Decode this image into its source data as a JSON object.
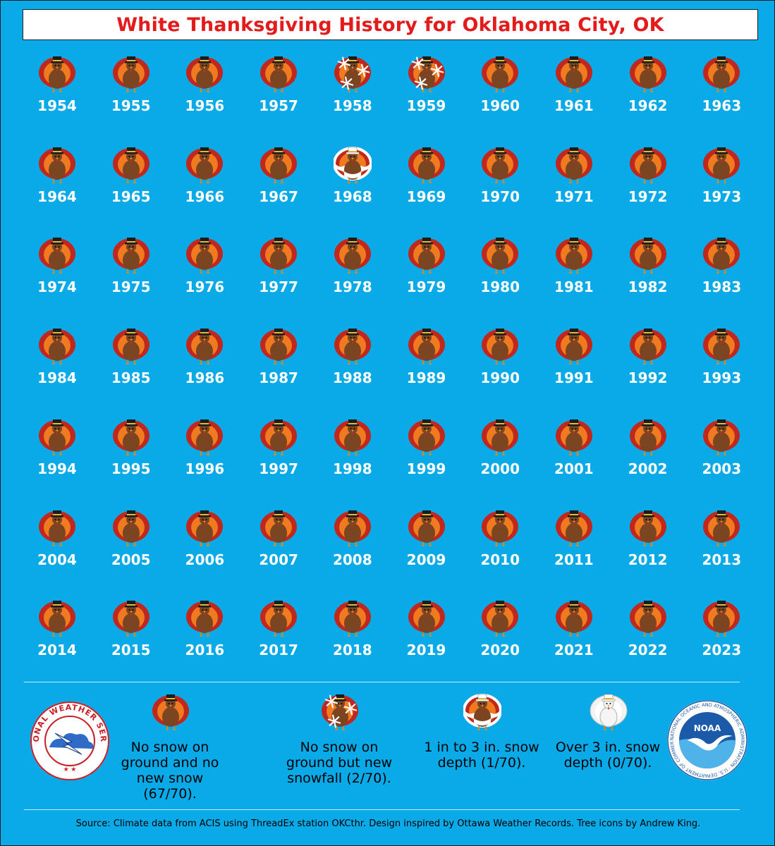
{
  "title": "White Thanksgiving History for Oklahoma City, OK",
  "chart_data": {
    "type": "table",
    "title": "White Thanksgiving History for Oklahoma City, OK",
    "categories": {
      "none": "No snow on ground and no new snow (67/70).",
      "new_snow": "No snow on ground but new snowfall (2/70).",
      "depth_1_3": "1 in to 3 in. snow depth (1/70).",
      "depth_over_3": "Over 3 in. snow depth (0/70)."
    },
    "years": [
      {
        "year": "1954",
        "category": "none"
      },
      {
        "year": "1955",
        "category": "none"
      },
      {
        "year": "1956",
        "category": "none"
      },
      {
        "year": "1957",
        "category": "none"
      },
      {
        "year": "1958",
        "category": "new_snow"
      },
      {
        "year": "1959",
        "category": "new_snow"
      },
      {
        "year": "1960",
        "category": "none"
      },
      {
        "year": "1961",
        "category": "none"
      },
      {
        "year": "1962",
        "category": "none"
      },
      {
        "year": "1963",
        "category": "none"
      },
      {
        "year": "1964",
        "category": "none"
      },
      {
        "year": "1965",
        "category": "none"
      },
      {
        "year": "1966",
        "category": "none"
      },
      {
        "year": "1967",
        "category": "none"
      },
      {
        "year": "1968",
        "category": "depth_1_3"
      },
      {
        "year": "1969",
        "category": "none"
      },
      {
        "year": "1970",
        "category": "none"
      },
      {
        "year": "1971",
        "category": "none"
      },
      {
        "year": "1972",
        "category": "none"
      },
      {
        "year": "1973",
        "category": "none"
      },
      {
        "year": "1974",
        "category": "none"
      },
      {
        "year": "1975",
        "category": "none"
      },
      {
        "year": "1976",
        "category": "none"
      },
      {
        "year": "1977",
        "category": "none"
      },
      {
        "year": "1978",
        "category": "none"
      },
      {
        "year": "1979",
        "category": "none"
      },
      {
        "year": "1980",
        "category": "none"
      },
      {
        "year": "1981",
        "category": "none"
      },
      {
        "year": "1982",
        "category": "none"
      },
      {
        "year": "1983",
        "category": "none"
      },
      {
        "year": "1984",
        "category": "none"
      },
      {
        "year": "1985",
        "category": "none"
      },
      {
        "year": "1986",
        "category": "none"
      },
      {
        "year": "1987",
        "category": "none"
      },
      {
        "year": "1988",
        "category": "none"
      },
      {
        "year": "1989",
        "category": "none"
      },
      {
        "year": "1990",
        "category": "none"
      },
      {
        "year": "1991",
        "category": "none"
      },
      {
        "year": "1992",
        "category": "none"
      },
      {
        "year": "1993",
        "category": "none"
      },
      {
        "year": "1994",
        "category": "none"
      },
      {
        "year": "1995",
        "category": "none"
      },
      {
        "year": "1996",
        "category": "none"
      },
      {
        "year": "1997",
        "category": "none"
      },
      {
        "year": "1998",
        "category": "none"
      },
      {
        "year": "1999",
        "category": "none"
      },
      {
        "year": "2000",
        "category": "none"
      },
      {
        "year": "2001",
        "category": "none"
      },
      {
        "year": "2002",
        "category": "none"
      },
      {
        "year": "2003",
        "category": "none"
      },
      {
        "year": "2004",
        "category": "none"
      },
      {
        "year": "2005",
        "category": "none"
      },
      {
        "year": "2006",
        "category": "none"
      },
      {
        "year": "2007",
        "category": "none"
      },
      {
        "year": "2008",
        "category": "none"
      },
      {
        "year": "2009",
        "category": "none"
      },
      {
        "year": "2010",
        "category": "none"
      },
      {
        "year": "2011",
        "category": "none"
      },
      {
        "year": "2012",
        "category": "none"
      },
      {
        "year": "2013",
        "category": "none"
      },
      {
        "year": "2014",
        "category": "none"
      },
      {
        "year": "2015",
        "category": "none"
      },
      {
        "year": "2016",
        "category": "none"
      },
      {
        "year": "2017",
        "category": "none"
      },
      {
        "year": "2018",
        "category": "none"
      },
      {
        "year": "2019",
        "category": "none"
      },
      {
        "year": "2020",
        "category": "none"
      },
      {
        "year": "2021",
        "category": "none"
      },
      {
        "year": "2022",
        "category": "none"
      },
      {
        "year": "2023",
        "category": "none"
      }
    ]
  },
  "legend": [
    {
      "category": "none",
      "icon": "turkey-icon",
      "label": "No snow on ground and no new snow (67/70)."
    },
    {
      "category": "new_snow",
      "icon": "turkey-snowflakes-icon",
      "label": "No snow on ground but new snowfall (2/70)."
    },
    {
      "category": "depth_1_3",
      "icon": "snowy-turkey-icon",
      "label": "1 in to 3 in. snow depth (1/70)."
    },
    {
      "category": "depth_over_3",
      "icon": "white-turkey-icon",
      "label": "Over 3 in. snow depth (0/70)."
    }
  ],
  "logos": {
    "nws": {
      "text": "NATIONAL WEATHER SERVICE"
    },
    "noaa": {
      "text": "NOAA",
      "ring_text": "NATIONAL OCEANIC AND ATMOSPHERIC ADMINISTRATION · U.S. DEPARTMENT OF COMMERCE"
    }
  },
  "source": "Source: Climate data from ACIS using ThreadEx station OKCthr. Design inspired by Ottawa Weather Records. Tree icons by Andrew King.",
  "colors": {
    "background": "#0aa9e8",
    "title": "#e31b1b",
    "turkey_body": "#7a4520",
    "feather_outer": "#c0271d",
    "feather_inner": "#f07a1f",
    "hat": "#1c1c1c",
    "snow": "#ffffff"
  }
}
